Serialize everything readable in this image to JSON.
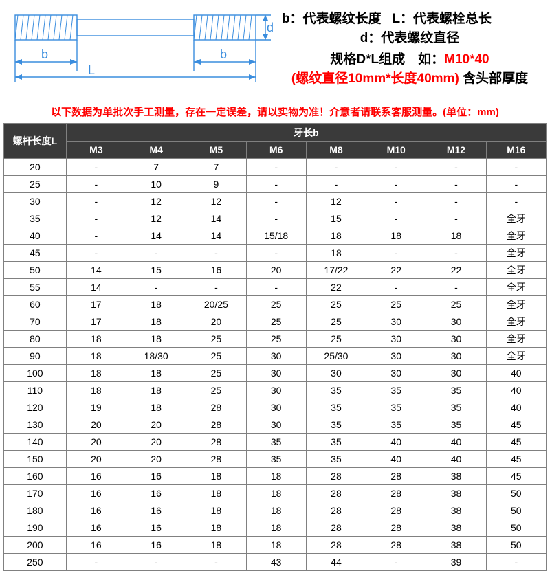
{
  "diagram": {
    "labels": {
      "b1": "b",
      "b2": "b",
      "L": "L",
      "d": "d"
    },
    "colors": {
      "stroke": "#3a8dde",
      "hatch": "#3a8dde"
    }
  },
  "legend": {
    "b_text": "b：代表螺纹长度",
    "L_text": "L：代表螺栓总长",
    "d_text": "d：代表螺纹直径",
    "spec_prefix": "规格",
    "spec_mid": "D*L",
    "spec_suffix": "组成　如：",
    "spec_example": "M10*40",
    "paren": "(螺纹直径10mm*长度40mm)",
    "tail": "含头部厚度"
  },
  "warning": "以下数据为单批次手工测量，存在一定误差，请以实物为准！介意者请联系客服测量。(单位：mm)",
  "table": {
    "row_header": "螺杆长度L",
    "col_group_header": "牙长b",
    "columns": [
      "M3",
      "M4",
      "M5",
      "M6",
      "M8",
      "M10",
      "M12",
      "M16"
    ],
    "rows": [
      {
        "L": "20",
        "v": [
          "-",
          "7",
          "7",
          "-",
          "-",
          "-",
          "-",
          "-"
        ]
      },
      {
        "L": "25",
        "v": [
          "-",
          "10",
          "9",
          "-",
          "-",
          "-",
          "-",
          "-"
        ]
      },
      {
        "L": "30",
        "v": [
          "-",
          "12",
          "12",
          "-",
          "12",
          "-",
          "-",
          "-"
        ]
      },
      {
        "L": "35",
        "v": [
          "-",
          "12",
          "14",
          "-",
          "15",
          "-",
          "-",
          "全牙"
        ]
      },
      {
        "L": "40",
        "v": [
          "-",
          "14",
          "14",
          "15/18",
          "18",
          "18",
          "18",
          "全牙"
        ]
      },
      {
        "L": "45",
        "v": [
          "-",
          "-",
          "-",
          "-",
          "18",
          "-",
          "-",
          "全牙"
        ]
      },
      {
        "L": "50",
        "v": [
          "14",
          "15",
          "16",
          "20",
          "17/22",
          "22",
          "22",
          "全牙"
        ]
      },
      {
        "L": "55",
        "v": [
          "14",
          "-",
          "-",
          "-",
          "22",
          "-",
          "-",
          "全牙"
        ]
      },
      {
        "L": "60",
        "v": [
          "17",
          "18",
          "20/25",
          "25",
          "25",
          "25",
          "25",
          "全牙"
        ]
      },
      {
        "L": "70",
        "v": [
          "17",
          "18",
          "20",
          "25",
          "25",
          "30",
          "30",
          "全牙"
        ]
      },
      {
        "L": "80",
        "v": [
          "18",
          "18",
          "25",
          "25",
          "25",
          "30",
          "30",
          "全牙"
        ]
      },
      {
        "L": "90",
        "v": [
          "18",
          "18/30",
          "25",
          "30",
          "25/30",
          "30",
          "30",
          "全牙"
        ]
      },
      {
        "L": "100",
        "v": [
          "18",
          "18",
          "25",
          "30",
          "30",
          "30",
          "30",
          "40"
        ]
      },
      {
        "L": "110",
        "v": [
          "18",
          "18",
          "25",
          "30",
          "35",
          "35",
          "35",
          "40"
        ]
      },
      {
        "L": "120",
        "v": [
          "19",
          "18",
          "28",
          "30",
          "35",
          "35",
          "35",
          "40"
        ]
      },
      {
        "L": "130",
        "v": [
          "20",
          "20",
          "28",
          "30",
          "35",
          "35",
          "35",
          "45"
        ]
      },
      {
        "L": "140",
        "v": [
          "20",
          "20",
          "28",
          "35",
          "35",
          "40",
          "40",
          "45"
        ]
      },
      {
        "L": "150",
        "v": [
          "20",
          "20",
          "28",
          "35",
          "35",
          "40",
          "40",
          "45"
        ]
      },
      {
        "L": "160",
        "v": [
          "16",
          "16",
          "18",
          "18",
          "28",
          "28",
          "38",
          "45"
        ]
      },
      {
        "L": "170",
        "v": [
          "16",
          "16",
          "18",
          "18",
          "28",
          "28",
          "38",
          "50"
        ]
      },
      {
        "L": "180",
        "v": [
          "16",
          "16",
          "18",
          "18",
          "28",
          "28",
          "38",
          "50"
        ]
      },
      {
        "L": "190",
        "v": [
          "16",
          "16",
          "18",
          "18",
          "28",
          "28",
          "38",
          "50"
        ]
      },
      {
        "L": "200",
        "v": [
          "16",
          "16",
          "18",
          "18",
          "28",
          "28",
          "38",
          "50"
        ]
      },
      {
        "L": "250",
        "v": [
          "-",
          "-",
          "-",
          "43",
          "44",
          "-",
          "39",
          "-"
        ]
      }
    ],
    "header_bg": "#3a3a3a",
    "header_fg": "#ffffff",
    "border_color": "#808080"
  }
}
